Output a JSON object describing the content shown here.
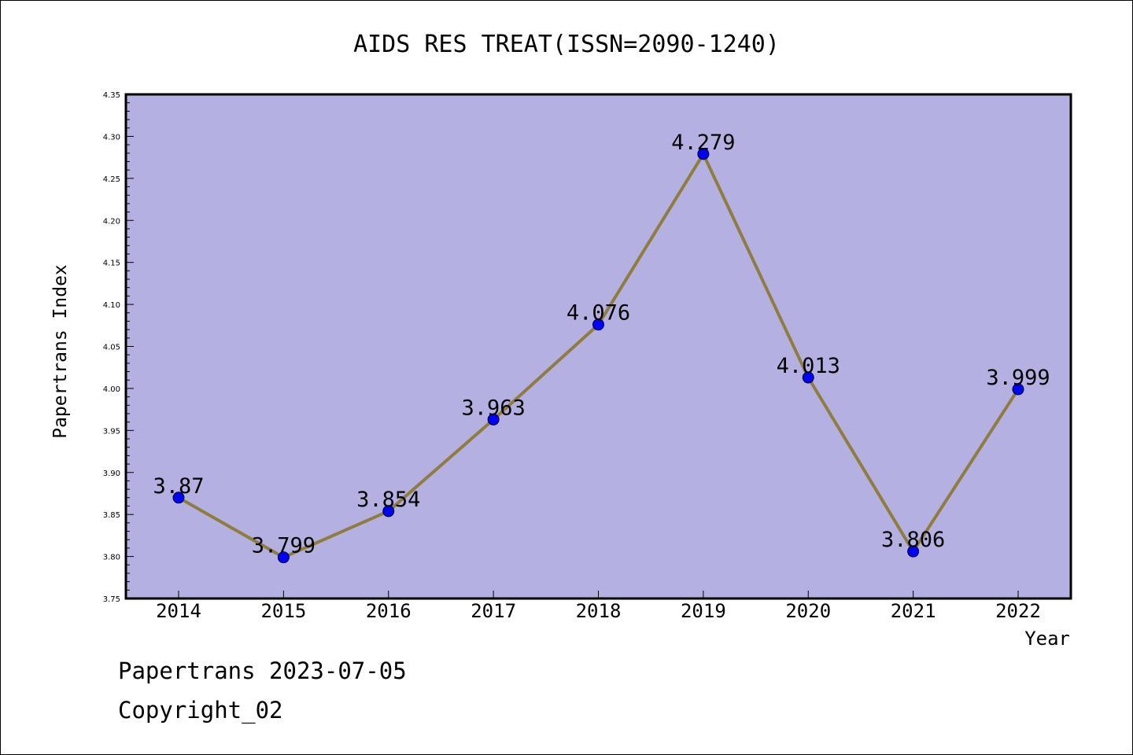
{
  "chart_data": {
    "type": "line",
    "title": "AIDS RES TREAT(ISSN=2090-1240)",
    "xlabel": "Year",
    "ylabel": "Papertrans Index",
    "categories": [
      "2014",
      "2015",
      "2016",
      "2017",
      "2018",
      "2019",
      "2020",
      "2021",
      "2022"
    ],
    "values": [
      3.87,
      3.799,
      3.854,
      3.963,
      4.076,
      4.279,
      4.013,
      3.806,
      3.999
    ],
    "data_labels": [
      "3.87",
      "3.799",
      "3.854",
      "3.963",
      "4.076",
      "4.279",
      "4.013",
      "3.806",
      "3.999"
    ],
    "ylim": [
      3.75,
      4.35
    ],
    "yticks": [
      "3.75",
      "3.80",
      "3.85",
      "3.90",
      "3.95",
      "4.00",
      "4.05",
      "4.10",
      "4.15",
      "4.20",
      "4.25",
      "4.30",
      "4.35"
    ],
    "grid": false,
    "colors": {
      "plot_background": "#b5b0e2",
      "line": "#8f7d3d",
      "marker": "#0000ff"
    }
  },
  "footer": {
    "line1": "Papertrans 2023-07-05",
    "line2": "Copyright_02"
  }
}
